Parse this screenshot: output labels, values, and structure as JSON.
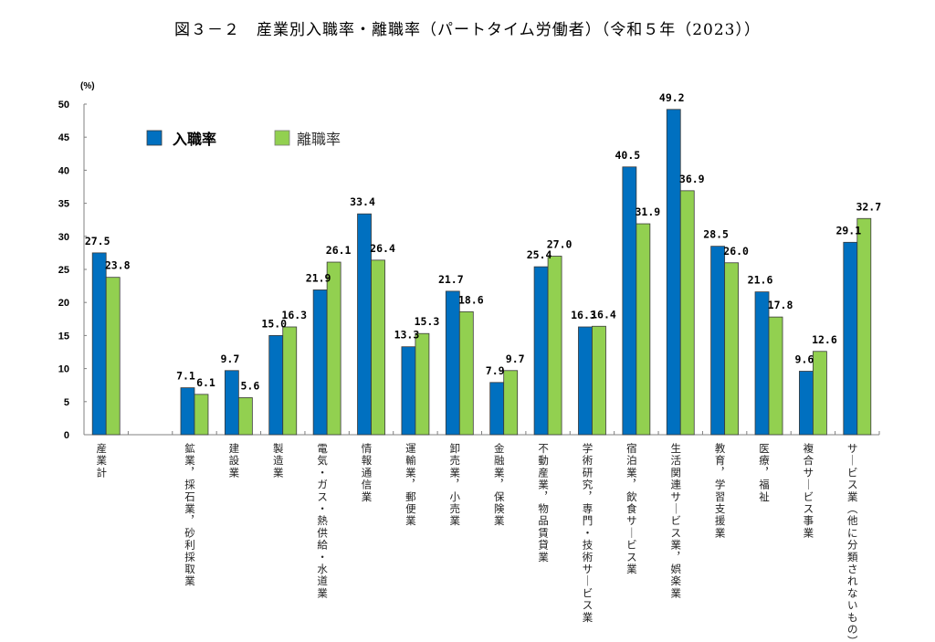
{
  "chart_data": {
    "type": "bar",
    "title": "図３－２　産業別入職率・離職率（パートタイム労働者）（令和５年（2023））",
    "ylabel": "(%)",
    "xlabel": "",
    "ylim": [
      0,
      50
    ],
    "yticks": [
      0,
      5,
      10,
      15,
      20,
      25,
      30,
      35,
      40,
      45,
      50
    ],
    "grid": false,
    "legend_position": "top-left",
    "categories": [
      "産業計",
      "",
      "鉱業，採石業，砂利採取業",
      "建設業",
      "製造業",
      "電気・ガス・熱供給・水道業",
      "情報通信業",
      "運輸業，郵便業",
      "卸売業，小売業",
      "金融業，保険業",
      "不動産業，物品賃貸業",
      "学術研究，専門・技術サービス業",
      "宿泊業，飲食サービス業",
      "生活関連サービス業，娯楽業",
      "教育，学習支援業",
      "医療，福祉",
      "複合サービス事業",
      "サービス業（他に分類されないもの）"
    ],
    "series": [
      {
        "name": "入職率",
        "color": "#0070C0",
        "values": [
          27.5,
          null,
          7.1,
          9.7,
          15.0,
          21.9,
          33.4,
          13.3,
          21.7,
          7.9,
          25.4,
          16.3,
          40.5,
          49.2,
          28.5,
          21.6,
          9.6,
          29.1
        ],
        "labels": [
          "27.5",
          "",
          "7.1",
          "9.7",
          "15.0",
          "21.9",
          "33.4",
          "13.3",
          "21.7",
          "7.9",
          "25.4",
          "16.3",
          "40.5",
          "49.2",
          "28.5",
          "21.6",
          "9.6",
          "29.1"
        ]
      },
      {
        "name": "離職率",
        "color": "#92D050",
        "values": [
          23.8,
          null,
          6.1,
          5.6,
          16.3,
          26.1,
          26.4,
          15.3,
          18.6,
          9.7,
          27.0,
          16.4,
          31.9,
          36.9,
          26.0,
          17.8,
          12.6,
          32.7
        ],
        "labels": [
          "23.8",
          "",
          "6.1",
          "5.6",
          "16.3",
          "26.1",
          "26.4",
          "15.3",
          "18.6",
          "9.7",
          "27.0",
          "16.4",
          "31.9",
          "36.9",
          "26.0",
          "17.8",
          "12.6",
          "32.7"
        ]
      }
    ]
  }
}
